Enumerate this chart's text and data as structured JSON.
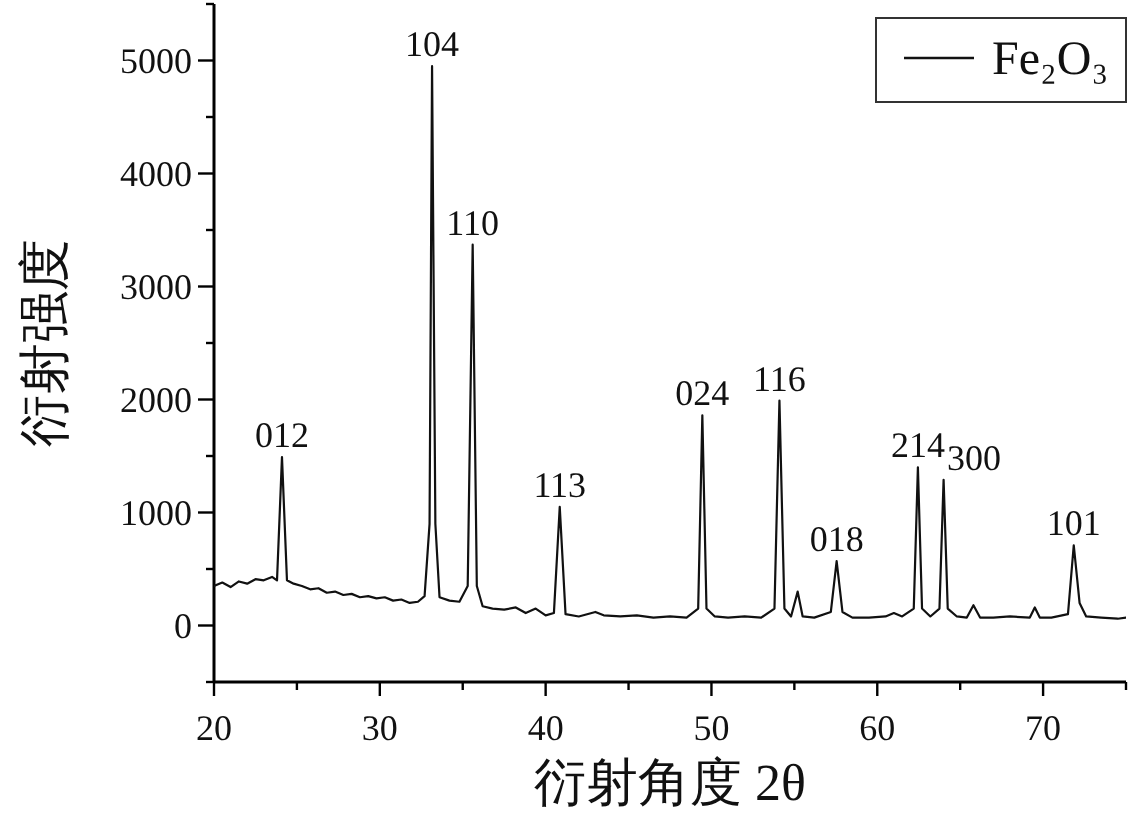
{
  "chart_data": {
    "type": "line",
    "xlabel": "衍射角度 2θ",
    "ylabel": "衍射强度",
    "legend": "top right",
    "xlim": [
      20,
      75
    ],
    "ylim": [
      -500,
      5500
    ],
    "xticks": [
      20,
      30,
      40,
      50,
      60,
      70
    ],
    "yticks": [
      0,
      1000,
      2000,
      3000,
      4000,
      5000
    ],
    "series": [
      {
        "name": "Fe₂O₃",
        "color": "#111111",
        "x": [
          20,
          20.5,
          21,
          21.5,
          22,
          22.5,
          23,
          23.5,
          23.8,
          24.1,
          24.4,
          24.8,
          25.3,
          25.8,
          26.3,
          26.8,
          27.3,
          27.8,
          28.3,
          28.8,
          29.3,
          29.8,
          30.3,
          30.8,
          31.3,
          31.8,
          32.3,
          32.7,
          33.0,
          33.15,
          33.35,
          33.6,
          34.2,
          34.8,
          35.3,
          35.6,
          35.85,
          36.2,
          36.8,
          37.5,
          38.2,
          38.8,
          39.4,
          40.0,
          40.5,
          40.85,
          41.2,
          42,
          43,
          43.5,
          44.5,
          45.5,
          46.5,
          47.5,
          48.5,
          49.2,
          49.45,
          49.7,
          50.2,
          51,
          52,
          53,
          53.8,
          54.1,
          54.4,
          54.8,
          55.2,
          55.5,
          56.2,
          57.2,
          57.55,
          57.9,
          58.5,
          59.5,
          60.5,
          61,
          61.5,
          62.2,
          62.45,
          62.7,
          63.2,
          63.75,
          64.0,
          64.25,
          64.8,
          65.4,
          65.8,
          66.2,
          67,
          68,
          69.2,
          69.5,
          69.8,
          70.5,
          71.5,
          71.85,
          72.2,
          72.6,
          73.5,
          74.5,
          75
        ],
        "values": [
          350,
          380,
          340,
          390,
          370,
          410,
          400,
          430,
          400,
          1490,
          400,
          370,
          350,
          320,
          330,
          290,
          300,
          270,
          280,
          250,
          260,
          240,
          250,
          220,
          230,
          200,
          210,
          260,
          900,
          4950,
          900,
          250,
          220,
          210,
          350,
          3370,
          350,
          170,
          150,
          140,
          160,
          110,
          150,
          90,
          110,
          1050,
          100,
          80,
          120,
          90,
          80,
          90,
          70,
          80,
          70,
          150,
          1860,
          150,
          80,
          70,
          80,
          70,
          150,
          1990,
          150,
          80,
          300,
          80,
          70,
          120,
          570,
          120,
          70,
          70,
          80,
          110,
          80,
          150,
          1400,
          150,
          80,
          150,
          1290,
          150,
          80,
          70,
          180,
          70,
          70,
          80,
          70,
          160,
          70,
          70,
          100,
          710,
          200,
          80,
          70,
          60,
          70
        ]
      }
    ],
    "annotations": [
      {
        "text": "012",
        "x": 24.1,
        "y": 1490
      },
      {
        "text": "104",
        "x": 33.15,
        "y": 4950
      },
      {
        "text": "110",
        "x": 35.6,
        "y": 3370
      },
      {
        "text": "113",
        "x": 40.85,
        "y": 1050
      },
      {
        "text": "024",
        "x": 49.45,
        "y": 1860
      },
      {
        "text": "116",
        "x": 54.1,
        "y": 1990
      },
      {
        "text": "018",
        "x": 57.55,
        "y": 570
      },
      {
        "text": "214",
        "x": 62.45,
        "y": 1400
      },
      {
        "text": "300",
        "x": 64.0,
        "y": 1290
      },
      {
        "text": "101",
        "x": 71.85,
        "y": 710
      }
    ]
  }
}
